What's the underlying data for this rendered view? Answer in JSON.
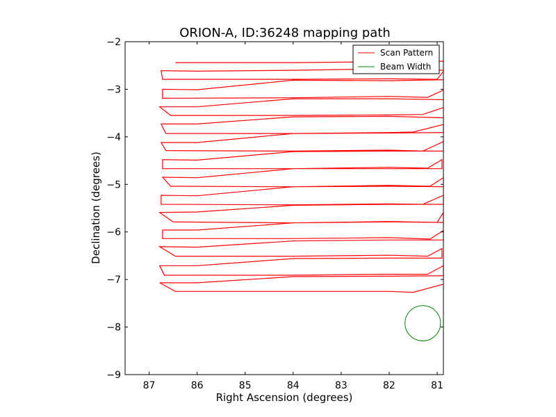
{
  "chart_data": {
    "type": "line",
    "title": "ORION-A, ID:36248 mapping path",
    "xlabel": "Right Ascension (degrees)",
    "ylabel": "Declination (degrees)",
    "xlim": [
      87.5,
      80.87
    ],
    "ylim": [
      -9,
      -2
    ],
    "x_reversed": true,
    "xticks": [
      87,
      86,
      85,
      84,
      83,
      82,
      81
    ],
    "yticks": [
      -2,
      -3,
      -4,
      -5,
      -6,
      -7,
      -8,
      -9
    ],
    "xtick_labels": [
      "87",
      "86",
      "85",
      "84",
      "83",
      "82",
      "81"
    ],
    "ytick_labels": [
      "−2",
      "−3",
      "−4",
      "−5",
      "−6",
      "−7",
      "−8",
      "−9"
    ],
    "grid": false,
    "legend": {
      "placement": "top-right"
    },
    "series": [
      {
        "name": "Scan Pattern",
        "color": "#ff0000",
        "x": [
          86.45,
          84.0,
          82.0,
          80.85,
          80.85,
          82.0,
          84.0,
          86.0,
          86.75,
          86.72,
          84.0,
          82.0,
          81.0,
          80.85,
          80.85,
          82.0,
          84.0,
          86.0,
          86.72,
          86.72,
          84.0,
          82.0,
          81.2,
          80.85,
          80.85,
          82.0,
          84.0,
          86.0,
          86.78,
          86.55,
          84.0,
          82.0,
          81.3,
          80.85,
          80.85,
          82.0,
          84.0,
          86.0,
          86.75,
          86.65,
          84.0,
          82.0,
          81.5,
          80.87,
          80.87,
          82.0,
          84.0,
          86.0,
          86.75,
          86.65,
          84.0,
          82.0,
          81.3,
          80.87,
          80.87,
          82.0,
          84.0,
          86.0,
          86.72,
          86.72,
          84.0,
          82.0,
          81.2,
          80.9,
          80.9,
          82.0,
          84.0,
          86.0,
          86.72,
          86.55,
          84.0,
          82.0,
          81.15,
          80.87,
          80.87,
          82.0,
          84.0,
          86.0,
          86.75,
          86.75,
          84.0,
          82.0,
          81.3,
          80.87,
          80.87,
          82.0,
          84.0,
          86.0,
          86.78,
          86.5,
          84.0,
          82.0,
          81.0,
          80.87,
          80.87,
          82.0,
          84.0,
          86.0,
          86.72,
          86.72,
          84.0,
          82.0,
          81.15,
          80.87,
          80.87,
          82.0,
          84.0,
          86.0,
          86.78,
          86.45,
          84.0,
          82.0,
          81.2,
          80.9,
          80.9,
          82.0,
          84.0,
          86.0,
          86.78,
          86.68,
          84.0,
          82.0,
          81.2,
          80.87,
          80.87,
          82.0,
          84.0,
          86.0,
          86.78,
          86.45,
          84.0,
          82.0,
          81.5,
          80.87
        ],
        "y": [
          -2.44,
          -2.44,
          -2.42,
          -2.41,
          -2.6,
          -2.57,
          -2.6,
          -2.62,
          -2.61,
          -2.79,
          -2.79,
          -2.78,
          -2.79,
          -2.6,
          -2.8,
          -2.82,
          -2.81,
          -3.01,
          -3.0,
          -3.19,
          -3.18,
          -3.15,
          -3.17,
          -3.01,
          -3.22,
          -3.2,
          -3.2,
          -3.37,
          -3.37,
          -3.55,
          -3.55,
          -3.54,
          -3.53,
          -3.38,
          -3.6,
          -3.57,
          -3.58,
          -3.73,
          -3.73,
          -3.93,
          -3.93,
          -3.91,
          -3.9,
          -3.74,
          -3.91,
          -3.92,
          -3.93,
          -4.12,
          -4.12,
          -4.29,
          -4.3,
          -4.28,
          -4.3,
          -4.1,
          -4.3,
          -4.3,
          -4.31,
          -4.49,
          -4.48,
          -4.67,
          -4.67,
          -4.64,
          -4.66,
          -4.48,
          -4.67,
          -4.67,
          -4.67,
          -4.86,
          -4.85,
          -5.04,
          -5.05,
          -5.02,
          -5.04,
          -4.86,
          -5.05,
          -5.04,
          -5.05,
          -5.24,
          -5.23,
          -5.42,
          -5.43,
          -5.41,
          -5.42,
          -5.23,
          -5.42,
          -5.42,
          -5.44,
          -5.58,
          -5.59,
          -5.79,
          -5.81,
          -5.78,
          -5.8,
          -5.59,
          -5.8,
          -5.79,
          -5.81,
          -5.96,
          -5.96,
          -6.14,
          -6.14,
          -6.12,
          -6.15,
          -5.97,
          -6.17,
          -6.17,
          -6.19,
          -6.32,
          -6.31,
          -6.51,
          -6.51,
          -6.49,
          -6.51,
          -6.35,
          -6.55,
          -6.55,
          -6.56,
          -6.71,
          -6.71,
          -6.91,
          -6.91,
          -6.89,
          -6.89,
          -6.71,
          -6.92,
          -6.93,
          -6.94,
          -7.07,
          -7.07,
          -7.25,
          -7.25,
          -7.25,
          -7.27,
          -7.1
        ]
      },
      {
        "name": "Beam Width",
        "color": "#008000",
        "shape": "circle",
        "center": [
          81.3,
          -7.92
        ],
        "radius_deg": 0.37
      }
    ]
  }
}
